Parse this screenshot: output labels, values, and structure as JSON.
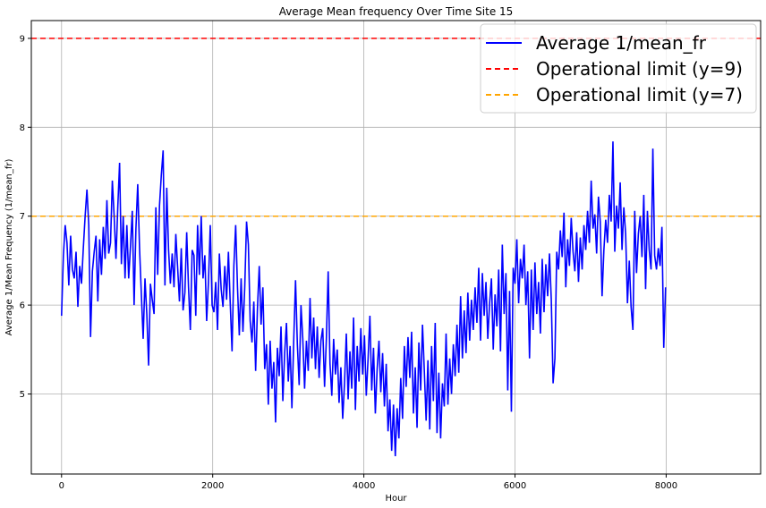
{
  "chart_data": {
    "type": "line",
    "title": "Average Mean frequency Over Time Site 15",
    "xlabel": "Hour",
    "ylabel": "Average 1/Mean Frequency (1/mean_fr)",
    "xlim": [
      -400,
      9250
    ],
    "ylim": [
      4.1,
      9.2
    ],
    "x_ticks": [
      0,
      2000,
      4000,
      6000,
      8000
    ],
    "x_tick_labels": [
      "0",
      "2000",
      "4000",
      "6000",
      "8000"
    ],
    "y_ticks": [
      5,
      6,
      7,
      8,
      9
    ],
    "y_tick_labels": [
      "5",
      "6",
      "7",
      "8",
      "9"
    ],
    "grid": true,
    "legend_position": "top-right",
    "colors": {
      "series": "#0000ff",
      "limit_9": "#ff0000",
      "limit_7": "#ffa500",
      "grid": "#b0b0b0",
      "axes": "#000000"
    },
    "series": [
      {
        "name": "Average 1/mean_fr",
        "x_start": 0,
        "x_step": 24,
        "values": [
          5.88,
          6.55,
          6.9,
          6.7,
          6.22,
          6.78,
          6.4,
          6.3,
          6.6,
          5.98,
          6.44,
          6.24,
          6.64,
          7.0,
          7.3,
          6.9,
          5.64,
          6.38,
          6.6,
          6.78,
          6.04,
          6.74,
          6.34,
          6.88,
          6.52,
          7.18,
          6.58,
          6.7,
          7.4,
          7.0,
          6.52,
          7.1,
          7.6,
          6.46,
          7.0,
          6.3,
          6.9,
          6.3,
          6.66,
          7.06,
          6.0,
          6.86,
          7.36,
          6.64,
          6.12,
          5.62,
          6.3,
          5.9,
          5.32,
          6.24,
          6.06,
          5.9,
          7.1,
          6.34,
          7.12,
          7.46,
          7.74,
          6.22,
          7.32,
          6.62,
          6.24,
          6.58,
          6.2,
          6.8,
          6.42,
          6.04,
          6.64,
          5.94,
          6.14,
          6.82,
          6.2,
          5.72,
          6.62,
          6.56,
          5.88,
          6.9,
          6.34,
          7.0,
          6.3,
          6.56,
          5.82,
          6.26,
          6.9,
          6.0,
          5.92,
          6.26,
          5.72,
          6.58,
          6.18,
          5.98,
          6.44,
          6.06,
          6.6,
          6.02,
          5.48,
          6.44,
          6.9,
          6.2,
          5.66,
          6.3,
          5.7,
          6.2,
          6.94,
          6.68,
          5.82,
          5.58,
          6.04,
          5.26,
          5.96,
          6.44,
          5.78,
          6.2,
          5.28,
          5.56,
          4.88,
          5.6,
          5.06,
          5.36,
          4.68,
          5.52,
          5.2,
          5.76,
          4.92,
          5.46,
          5.8,
          5.14,
          5.54,
          4.84,
          5.6,
          6.28,
          5.56,
          5.1,
          6.0,
          5.62,
          5.06,
          5.6,
          5.26,
          6.08,
          5.4,
          5.86,
          5.28,
          5.76,
          5.18,
          5.6,
          5.74,
          5.08,
          5.62,
          6.38,
          5.34,
          4.98,
          5.62,
          5.22,
          5.5,
          4.9,
          5.3,
          4.72,
          5.12,
          5.68,
          4.94,
          5.48,
          5.06,
          5.86,
          4.82,
          5.54,
          5.14,
          5.74,
          5.22,
          5.66,
          4.98,
          5.4,
          5.88,
          5.04,
          5.52,
          4.78,
          5.28,
          5.6,
          5.02,
          5.46,
          4.86,
          5.34,
          4.58,
          4.94,
          4.36,
          4.88,
          4.3,
          4.84,
          4.5,
          5.18,
          4.72,
          5.54,
          5.08,
          5.64,
          5.18,
          5.7,
          4.78,
          5.3,
          4.62,
          5.58,
          5.04,
          5.78,
          5.26,
          4.7,
          5.38,
          4.6,
          5.54,
          4.92,
          5.8,
          4.56,
          5.24,
          4.5,
          5.12,
          4.86,
          5.68,
          4.88,
          5.4,
          5.0,
          5.56,
          5.2,
          5.78,
          5.24,
          6.1,
          5.4,
          5.94,
          5.46,
          6.14,
          5.6,
          6.06,
          5.72,
          6.2,
          5.8,
          6.42,
          5.6,
          6.36,
          5.88,
          6.26,
          5.62,
          6.02,
          6.3,
          5.5,
          6.12,
          5.76,
          6.4,
          5.48,
          6.68,
          5.9,
          6.36,
          5.04,
          6.16,
          4.8,
          6.42,
          6.24,
          6.74,
          6.02,
          6.52,
          6.3,
          6.68,
          6.0,
          6.38,
          5.4,
          6.4,
          5.72,
          6.48,
          5.9,
          6.26,
          5.68,
          6.52,
          5.92,
          6.46,
          6.1,
          6.58,
          6.06,
          5.12,
          5.4,
          6.6,
          6.4,
          6.84,
          6.54,
          7.04,
          6.2,
          6.74,
          6.44,
          6.98,
          6.6,
          6.38,
          6.82,
          6.26,
          6.76,
          6.4,
          6.9,
          6.62,
          7.06,
          6.7,
          7.4,
          6.86,
          7.02,
          6.58,
          7.22,
          6.94,
          6.1,
          6.62,
          6.96,
          6.7,
          7.24,
          6.94,
          7.84,
          6.6,
          7.12,
          6.86,
          7.38,
          6.62,
          7.1,
          6.8,
          6.02,
          6.5,
          5.98,
          5.72,
          7.06,
          6.36,
          6.8,
          7.0,
          6.54,
          7.24,
          6.18,
          7.06,
          6.62,
          6.4,
          7.76,
          6.56,
          6.4,
          6.64,
          6.44,
          6.88,
          5.52,
          6.2
        ]
      }
    ],
    "reference_lines": [
      {
        "name": "Operational limit (y=9)",
        "y": 9
      },
      {
        "name": "Operational limit (y=7)",
        "y": 7
      }
    ]
  }
}
